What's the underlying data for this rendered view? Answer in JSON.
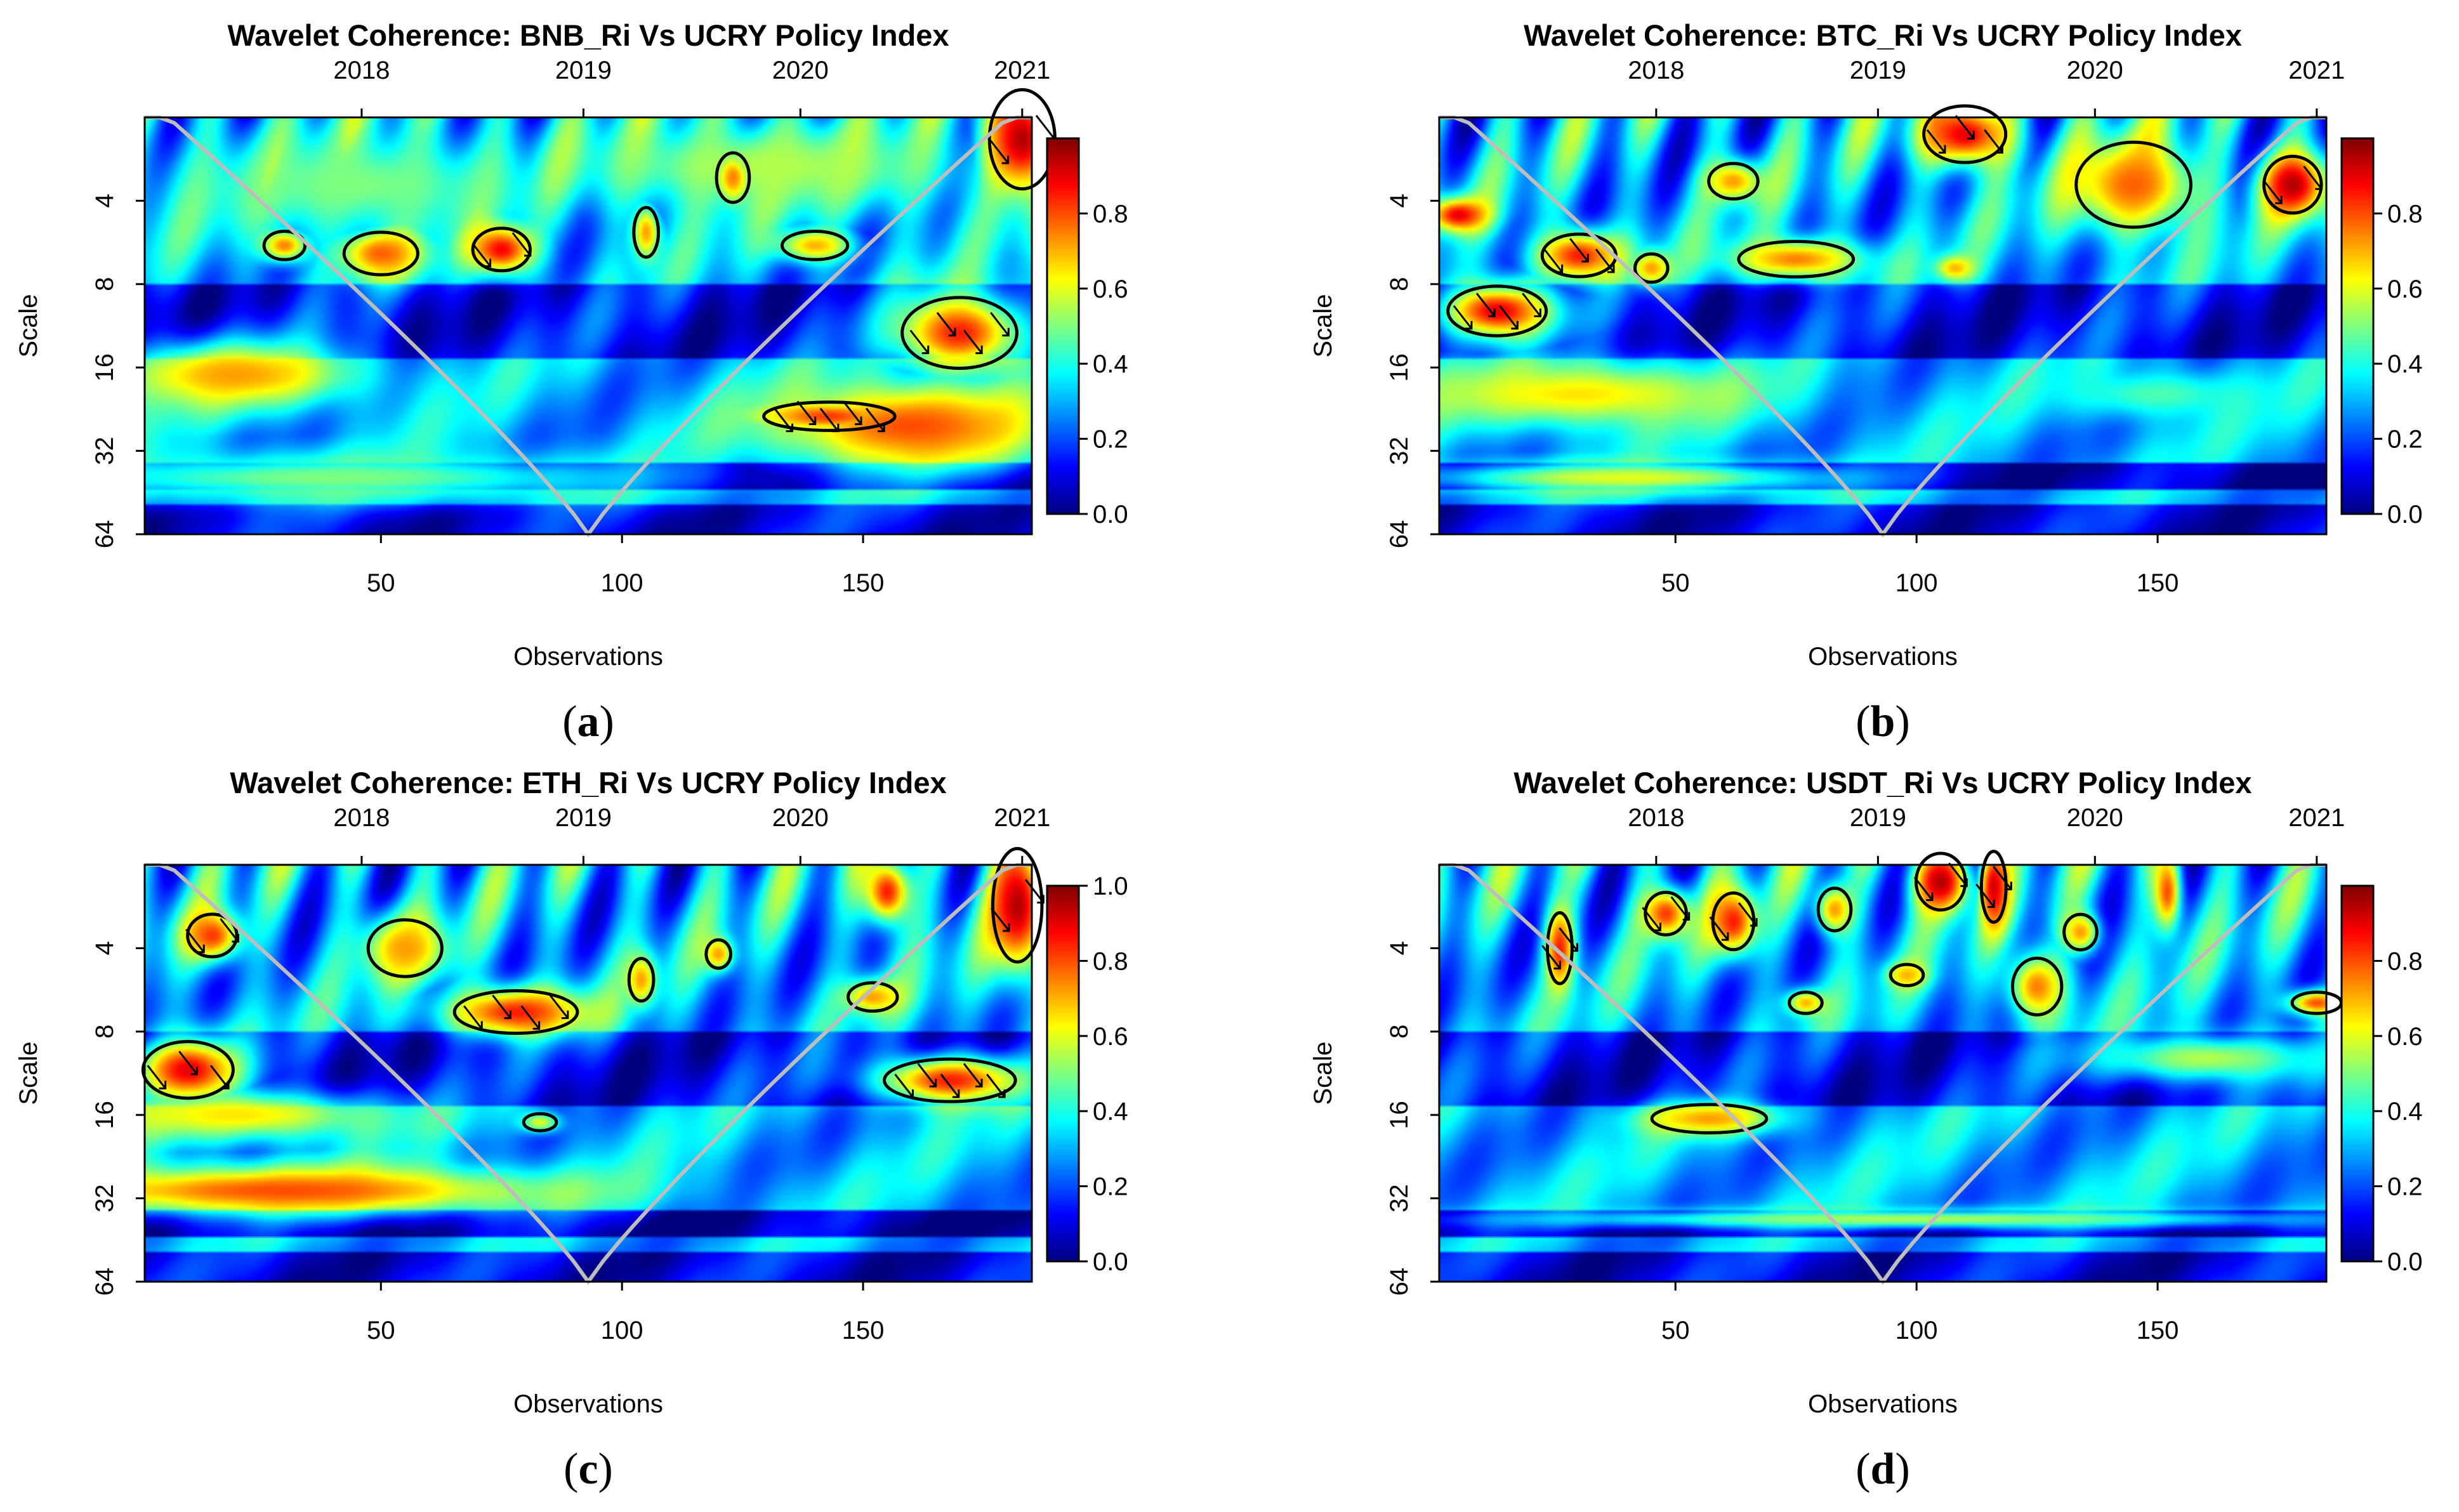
{
  "chart_data": [
    {
      "type": "heatmap",
      "panel_label": "a",
      "title": "Wavelet Coherence: BNB_Ri Vs UCRY Policy Index",
      "xlabel": "Observations",
      "ylabel": "Scale",
      "x_ticks": [
        50,
        100,
        150
      ],
      "x_range": [
        1,
        185
      ],
      "y_ticks": [
        4,
        8,
        16,
        32,
        64
      ],
      "y_range": [
        2,
        64
      ],
      "y_scale": "log2",
      "top_axis": {
        "labels": [
          "2018",
          "2019",
          "2020",
          "2021"
        ],
        "positions": [
          46,
          92,
          137,
          183
        ]
      },
      "colorbar": {
        "ticks": [
          "0.0",
          "0.2",
          "0.4",
          "0.6",
          "0.8"
        ],
        "range": [
          0,
          1
        ],
        "max": 1.0
      },
      "colormap": [
        "#00007f",
        "#0000ff",
        "#007fff",
        "#00ffff",
        "#7fff7f",
        "#ffff00",
        "#ff7f00",
        "#ff0000",
        "#7f0000"
      ],
      "cone_color": "#bdbdbd",
      "regions": [
        {
          "x": 183,
          "s": 2.4,
          "rx": 8,
          "ry": 0.7,
          "v": 0.95,
          "contour": true
        },
        {
          "x": 75,
          "s": 6.0,
          "rx": 7,
          "ry": 0.3,
          "v": 0.88,
          "contour": true
        },
        {
          "x": 50,
          "s": 6.2,
          "rx": 9,
          "ry": 0.3,
          "v": 0.78,
          "contour": true
        },
        {
          "x": 30,
          "s": 5.8,
          "rx": 5,
          "ry": 0.2,
          "v": 0.75,
          "contour": true
        },
        {
          "x": 105,
          "s": 5.2,
          "rx": 3,
          "ry": 0.35,
          "v": 0.72,
          "contour": true
        },
        {
          "x": 123,
          "s": 3.3,
          "rx": 4,
          "ry": 0.35,
          "v": 0.75,
          "contour": true
        },
        {
          "x": 140,
          "s": 5.8,
          "rx": 8,
          "ry": 0.2,
          "v": 0.7,
          "contour": true
        },
        {
          "x": 170,
          "s": 12.0,
          "rx": 14,
          "ry": 0.5,
          "v": 0.85,
          "contour": true
        },
        {
          "x": 143,
          "s": 24.0,
          "rx": 16,
          "ry": 0.2,
          "v": 0.82,
          "contour": true
        },
        {
          "x": 160,
          "s": 26.0,
          "rx": 30,
          "ry": 0.55,
          "v": 0.8,
          "contour": false
        },
        {
          "x": 20,
          "s": 17.0,
          "rx": 25,
          "ry": 0.4,
          "v": 0.72,
          "contour": false
        },
        {
          "x": 130,
          "s": 3.0,
          "rx": 45,
          "ry": 0.6,
          "v": 0.55,
          "contour": false
        },
        {
          "x": 45,
          "s": 3.5,
          "rx": 40,
          "ry": 0.7,
          "v": 0.5,
          "contour": false
        },
        {
          "x": 40,
          "s": 40.0,
          "rx": 70,
          "ry": 0.3,
          "v": 0.5,
          "contour": false
        }
      ]
    },
    {
      "type": "heatmap",
      "panel_label": "b",
      "title": "Wavelet Coherence: BTC_Ri Vs UCRY Policy Index",
      "xlabel": "Observations",
      "ylabel": "Scale",
      "x_ticks": [
        50,
        100,
        150
      ],
      "x_range": [
        1,
        185
      ],
      "y_ticks": [
        4,
        8,
        16,
        32,
        64
      ],
      "y_range": [
        2,
        64
      ],
      "y_scale": "log2",
      "top_axis": {
        "labels": [
          "2018",
          "2019",
          "2020",
          "2021"
        ],
        "positions": [
          46,
          92,
          137,
          183
        ]
      },
      "colorbar": {
        "ticks": [
          "0.0",
          "0.2",
          "0.4",
          "0.6",
          "0.8"
        ],
        "range": [
          0,
          1
        ],
        "max": 1.0
      },
      "colormap": [
        "#00007f",
        "#0000ff",
        "#007fff",
        "#00ffff",
        "#7fff7f",
        "#ffff00",
        "#ff7f00",
        "#ff0000",
        "#7f0000"
      ],
      "cone_color": "#bdbdbd",
      "regions": [
        {
          "x": 13,
          "s": 10.0,
          "rx": 12,
          "ry": 0.35,
          "v": 0.9,
          "contour": true
        },
        {
          "x": 30,
          "s": 6.3,
          "rx": 9,
          "ry": 0.3,
          "v": 0.85,
          "contour": true
        },
        {
          "x": 45,
          "s": 7.0,
          "rx": 4,
          "ry": 0.2,
          "v": 0.72,
          "contour": true
        },
        {
          "x": 75,
          "s": 6.5,
          "rx": 14,
          "ry": 0.25,
          "v": 0.75,
          "contour": true
        },
        {
          "x": 62,
          "s": 3.4,
          "rx": 6,
          "ry": 0.25,
          "v": 0.72,
          "contour": true
        },
        {
          "x": 110,
          "s": 2.3,
          "rx": 10,
          "ry": 0.4,
          "v": 0.9,
          "contour": true
        },
        {
          "x": 145,
          "s": 3.5,
          "rx": 14,
          "ry": 0.6,
          "v": 0.78,
          "contour": true
        },
        {
          "x": 178,
          "s": 3.5,
          "rx": 7,
          "ry": 0.4,
          "v": 0.95,
          "contour": true
        },
        {
          "x": 108,
          "s": 7.0,
          "rx": 4,
          "ry": 0.15,
          "v": 0.7,
          "contour": false
        },
        {
          "x": 5,
          "s": 4.5,
          "rx": 6,
          "ry": 0.2,
          "v": 0.9,
          "contour": false
        },
        {
          "x": 30,
          "s": 20.0,
          "rx": 35,
          "ry": 0.4,
          "v": 0.65,
          "contour": false
        },
        {
          "x": 40,
          "s": 40.0,
          "rx": 45,
          "ry": 0.2,
          "v": 0.6,
          "contour": false
        },
        {
          "x": 150,
          "s": 20.0,
          "rx": 20,
          "ry": 0.3,
          "v": 0.45,
          "contour": false
        }
      ]
    },
    {
      "type": "heatmap",
      "panel_label": "c",
      "title": "Wavelet Coherence: ETH_Ri Vs UCRY Policy Index",
      "xlabel": "Observations",
      "ylabel": "Scale",
      "x_ticks": [
        50,
        100,
        150
      ],
      "x_range": [
        1,
        185
      ],
      "y_ticks": [
        4,
        8,
        16,
        32,
        64
      ],
      "y_range": [
        2,
        64
      ],
      "y_scale": "log2",
      "top_axis": {
        "labels": [
          "2018",
          "2019",
          "2020",
          "2021"
        ],
        "positions": [
          46,
          92,
          137,
          183
        ]
      },
      "colorbar": {
        "ticks": [
          "0.0",
          "0.2",
          "0.4",
          "0.6",
          "0.8",
          "1.0"
        ],
        "range": [
          0,
          1
        ],
        "max": 1.0
      },
      "colormap": [
        "#00007f",
        "#0000ff",
        "#007fff",
        "#00ffff",
        "#7fff7f",
        "#ffff00",
        "#ff7f00",
        "#ff0000",
        "#7f0000"
      ],
      "cone_color": "#bdbdbd",
      "regions": [
        {
          "x": 10,
          "s": 11.0,
          "rx": 11,
          "ry": 0.4,
          "v": 0.9,
          "contour": true
        },
        {
          "x": 15,
          "s": 3.6,
          "rx": 6,
          "ry": 0.3,
          "v": 0.82,
          "contour": true
        },
        {
          "x": 55,
          "s": 4.0,
          "rx": 9,
          "ry": 0.4,
          "v": 0.72,
          "contour": true
        },
        {
          "x": 78,
          "s": 6.8,
          "rx": 15,
          "ry": 0.3,
          "v": 0.85,
          "contour": true
        },
        {
          "x": 104,
          "s": 5.2,
          "rx": 3,
          "ry": 0.3,
          "v": 0.72,
          "contour": true
        },
        {
          "x": 120,
          "s": 4.2,
          "rx": 3,
          "ry": 0.2,
          "v": 0.72,
          "contour": true
        },
        {
          "x": 152,
          "s": 6.0,
          "rx": 6,
          "ry": 0.2,
          "v": 0.72,
          "contour": true
        },
        {
          "x": 83,
          "s": 17.0,
          "rx": 4,
          "ry": 0.12,
          "v": 0.6,
          "contour": true
        },
        {
          "x": 168,
          "s": 12.0,
          "rx": 16,
          "ry": 0.3,
          "v": 0.85,
          "contour": true
        },
        {
          "x": 182,
          "s": 2.8,
          "rx": 6,
          "ry": 0.8,
          "v": 0.95,
          "contour": true
        },
        {
          "x": 155,
          "s": 2.5,
          "rx": 5,
          "ry": 0.4,
          "v": 0.85,
          "contour": false
        },
        {
          "x": 30,
          "s": 30.0,
          "rx": 55,
          "ry": 0.3,
          "v": 0.8,
          "contour": false
        },
        {
          "x": 20,
          "s": 16.0,
          "rx": 30,
          "ry": 0.3,
          "v": 0.65,
          "contour": false
        }
      ]
    },
    {
      "type": "heatmap",
      "panel_label": "d",
      "title": "Wavelet Coherence: USDT_Ri Vs UCRY Policy Index",
      "xlabel": "Observations",
      "ylabel": "Scale",
      "x_ticks": [
        50,
        100,
        150
      ],
      "x_range": [
        1,
        185
      ],
      "y_ticks": [
        4,
        8,
        16,
        32,
        64
      ],
      "y_range": [
        2,
        64
      ],
      "y_scale": "log2",
      "top_axis": {
        "labels": [
          "2018",
          "2019",
          "2020",
          "2021"
        ],
        "positions": [
          46,
          92,
          137,
          183
        ]
      },
      "colorbar": {
        "ticks": [
          "0.0",
          "0.2",
          "0.4",
          "0.6",
          "0.8"
        ],
        "range": [
          0,
          1
        ],
        "max": 1.0
      },
      "colormap": [
        "#00007f",
        "#0000ff",
        "#007fff",
        "#00ffff",
        "#7fff7f",
        "#ffff00",
        "#ff7f00",
        "#ff0000",
        "#7f0000"
      ],
      "cone_color": "#bdbdbd",
      "regions": [
        {
          "x": 26,
          "s": 4.0,
          "rx": 3,
          "ry": 0.5,
          "v": 0.85,
          "contour": true
        },
        {
          "x": 48,
          "s": 3.0,
          "rx": 5,
          "ry": 0.3,
          "v": 0.82,
          "contour": true
        },
        {
          "x": 62,
          "s": 3.2,
          "rx": 5,
          "ry": 0.4,
          "v": 0.85,
          "contour": true
        },
        {
          "x": 77,
          "s": 6.3,
          "rx": 4,
          "ry": 0.15,
          "v": 0.7,
          "contour": true
        },
        {
          "x": 83,
          "s": 2.9,
          "rx": 4,
          "ry": 0.3,
          "v": 0.72,
          "contour": true
        },
        {
          "x": 105,
          "s": 2.3,
          "rx": 6,
          "ry": 0.4,
          "v": 0.95,
          "contour": true
        },
        {
          "x": 116,
          "s": 2.4,
          "rx": 3,
          "ry": 0.5,
          "v": 0.92,
          "contour": true
        },
        {
          "x": 98,
          "s": 5.0,
          "rx": 4,
          "ry": 0.15,
          "v": 0.7,
          "contour": true
        },
        {
          "x": 125,
          "s": 5.5,
          "rx": 6,
          "ry": 0.4,
          "v": 0.75,
          "contour": true
        },
        {
          "x": 134,
          "s": 3.5,
          "rx": 4,
          "ry": 0.25,
          "v": 0.72,
          "contour": true
        },
        {
          "x": 57,
          "s": 16.5,
          "rx": 14,
          "ry": 0.2,
          "v": 0.72,
          "contour": true
        },
        {
          "x": 183,
          "s": 6.3,
          "rx": 6,
          "ry": 0.15,
          "v": 0.8,
          "contour": true
        },
        {
          "x": 152,
          "s": 2.5,
          "rx": 3,
          "ry": 0.5,
          "v": 0.8,
          "contour": false
        },
        {
          "x": 100,
          "s": 38.0,
          "rx": 85,
          "ry": 0.12,
          "v": 0.55,
          "contour": false
        },
        {
          "x": 160,
          "s": 10.0,
          "rx": 25,
          "ry": 0.3,
          "v": 0.55,
          "contour": false
        }
      ]
    }
  ]
}
